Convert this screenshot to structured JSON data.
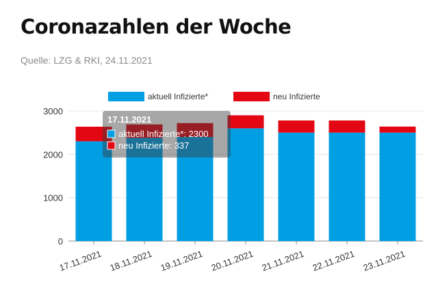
{
  "header": {
    "title": "Coronazahlen der Woche",
    "source": "Quelle: LZG & RKI, 24.11.2021"
  },
  "chart_data": {
    "type": "bar",
    "stacked": true,
    "categories": [
      "17.11.2021",
      "18.11.2021",
      "19.11.2021",
      "20.11.2021",
      "21.11.2021",
      "22.11.2021",
      "23.11.2021"
    ],
    "series": [
      {
        "name": "aktuell Infizierte*",
        "color": "#009fe3",
        "values": [
          2300,
          2380,
          2400,
          2600,
          2500,
          2500,
          2500
        ]
      },
      {
        "name": "neu Infizierte",
        "color": "#e30613",
        "values": [
          337,
          310,
          320,
          300,
          280,
          280,
          140
        ]
      }
    ],
    "ylim": [
      0,
      3000
    ],
    "yticks": [
      0,
      1000,
      2000,
      3000
    ],
    "grid": true,
    "legend": "top-center",
    "tooltip": {
      "title": "17.11.2021",
      "lines": [
        "aktuell Infizierte*: 2300",
        "neu Infizierte: 337"
      ]
    }
  }
}
